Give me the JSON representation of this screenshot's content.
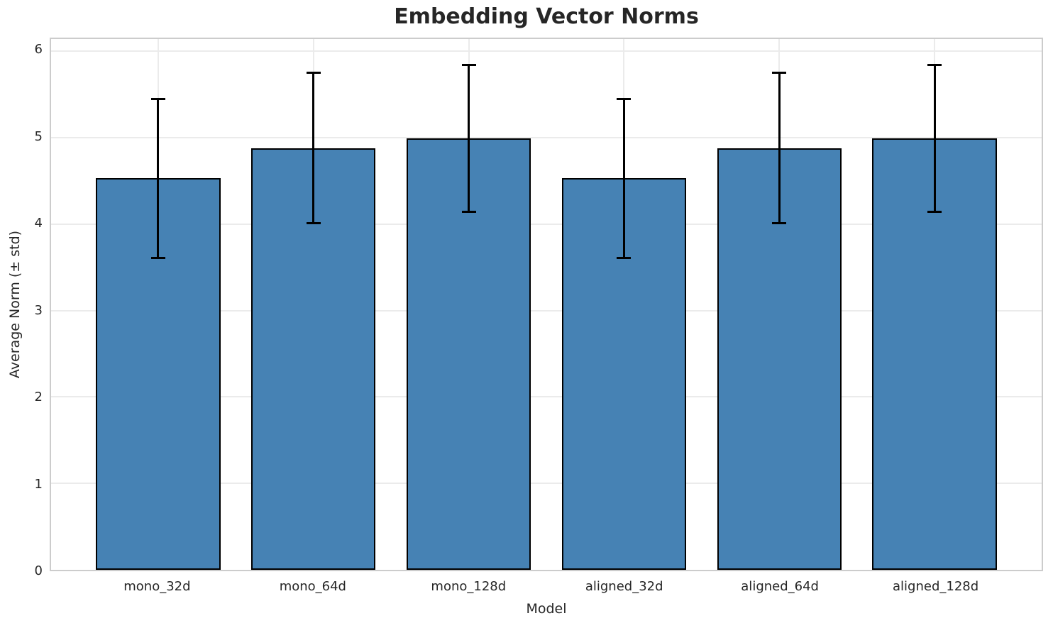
{
  "chart_data": {
    "type": "bar",
    "title": "Embedding Vector Norms",
    "xlabel": "Model",
    "ylabel": "Average Norm (± std)",
    "categories": [
      "mono_32d",
      "mono_64d",
      "mono_128d",
      "aligned_32d",
      "aligned_64d",
      "aligned_128d"
    ],
    "values": [
      4.53,
      4.88,
      4.99,
      4.53,
      4.88,
      4.99
    ],
    "errors": [
      0.92,
      0.87,
      0.85,
      0.92,
      0.87,
      0.85
    ],
    "yticks": [
      0,
      1,
      2,
      3,
      4,
      5,
      6
    ],
    "ylim": [
      0,
      6.14
    ],
    "xlim": [
      -0.69,
      5.69
    ],
    "bar_width_units": 0.8,
    "grid": true,
    "legend": false,
    "colors": {
      "bar_fill": "#4682b4",
      "bar_edge": "#000000",
      "error_bar": "#000000",
      "grid_line": "#ebebeb",
      "spine": "#cccccc",
      "text": "#262626"
    }
  }
}
